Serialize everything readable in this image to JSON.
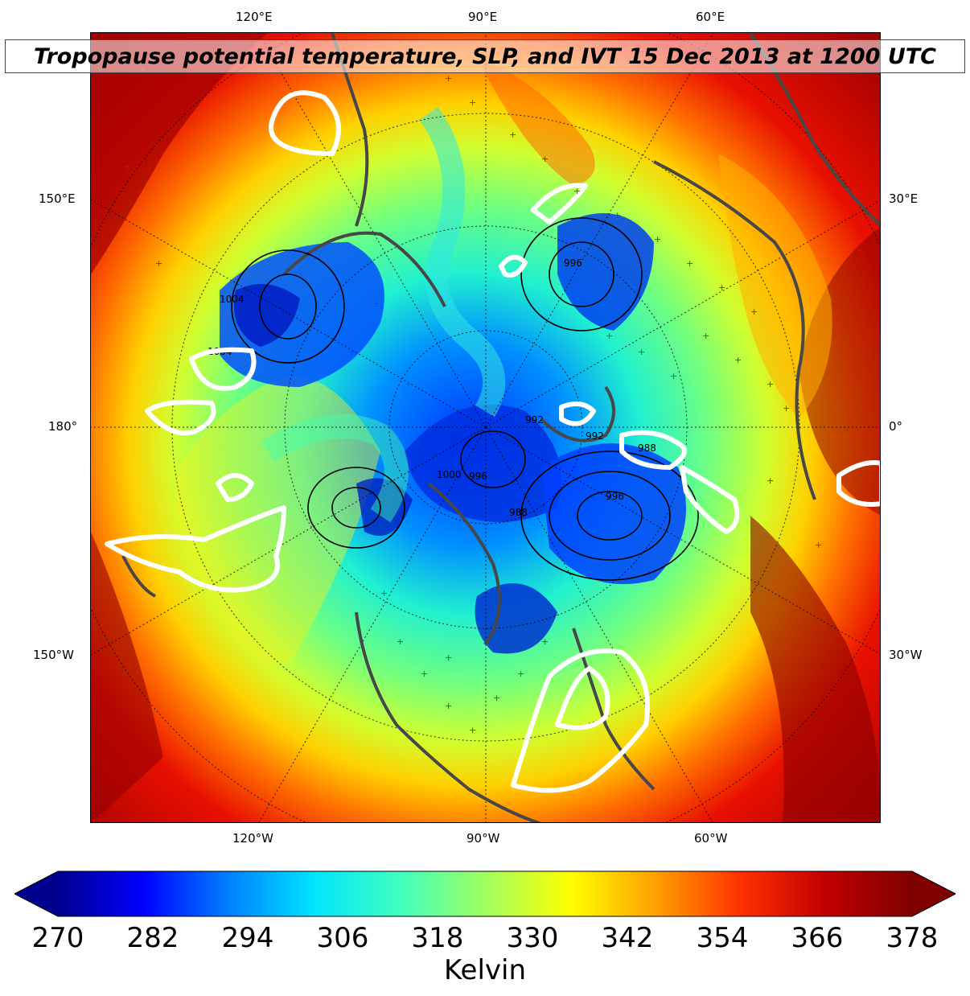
{
  "title": "Tropopause potential temperature, SLP, and IVT 15 Dec 2013 at 1200 UTC",
  "map": {
    "projection": "north-polar-stereographic",
    "fields": [
      "Tropopause potential temperature (shaded)",
      "SLP (black contours)",
      "IVT (white contours)"
    ],
    "coastline_color": "#474747",
    "station_marker_color": "#b000b0",
    "slp_contour_labels": [
      "996",
      "1004",
      "992",
      "988",
      "996",
      "988",
      "992",
      "1000",
      "1004",
      "996"
    ]
  },
  "lon_labels": {
    "top": [
      "120°E",
      "90°E",
      "60°E"
    ],
    "bottom": [
      "120°W",
      "90°W",
      "60°W"
    ],
    "left": [
      "150°E",
      "180°",
      "150°W"
    ],
    "right": [
      "30°E",
      "0°",
      "30°W"
    ]
  },
  "colorbar": {
    "ticks": [
      "270",
      "282",
      "294",
      "306",
      "318",
      "330",
      "342",
      "354",
      "366",
      "378"
    ],
    "label": "Kelvin",
    "min": 270,
    "max": 378,
    "extend": "both",
    "colormap": "jet",
    "stops": [
      "#00008f",
      "#0000ff",
      "#0080ff",
      "#00e5ff",
      "#40ffbf",
      "#a0ff60",
      "#ffff00",
      "#ffa000",
      "#ff3000",
      "#c00000",
      "#800000"
    ]
  }
}
